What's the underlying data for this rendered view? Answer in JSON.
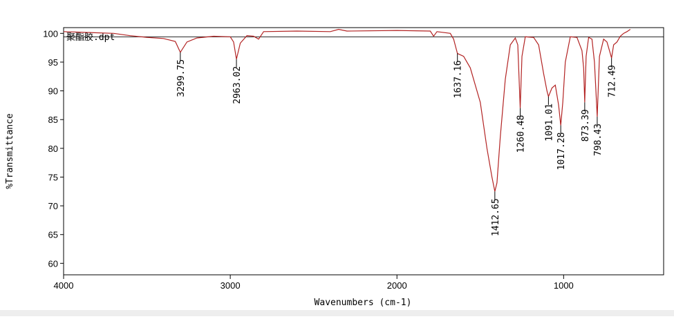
{
  "chart_data": {
    "type": "line",
    "legend": "聚酯胶.dpt",
    "xlabel": "Wavenumbers (cm-1)",
    "ylabel": "%Transmittance",
    "xlim": [
      4000,
      400
    ],
    "ylim": [
      58,
      101
    ],
    "xticks": [
      4000,
      3000,
      2000,
      1000
    ],
    "yticks": [
      60,
      65,
      70,
      75,
      80,
      85,
      90,
      95,
      100
    ],
    "reference_line": 99.4,
    "series": [
      {
        "color": "#b22222",
        "x": [
          4000,
          3900,
          3800,
          3700,
          3600,
          3500,
          3400,
          3330,
          3299.75,
          3260,
          3200,
          3100,
          3000,
          2980,
          2963.02,
          2940,
          2900,
          2860,
          2830,
          2800,
          2600,
          2400,
          2350,
          2300,
          2000,
          1800,
          1780,
          1760,
          1680,
          1660,
          1637.16,
          1600,
          1560,
          1500,
          1460,
          1430,
          1412.65,
          1400,
          1380,
          1350,
          1320,
          1290,
          1275,
          1260.48,
          1250,
          1230,
          1180,
          1150,
          1120,
          1100,
          1091.01,
          1070,
          1050,
          1030,
          1017.28,
          1005,
          990,
          960,
          920,
          890,
          880,
          873.39,
          865,
          850,
          830,
          815,
          798.43,
          785,
          760,
          740,
          720,
          712.49,
          700,
          680,
          660,
          640,
          620,
          600
        ],
        "values": [
          100.3,
          100.2,
          100.1,
          100,
          99.6,
          99.3,
          99.1,
          98.6,
          96.7,
          98.5,
          99.2,
          99.5,
          99.4,
          98.5,
          95.5,
          98.3,
          99.6,
          99.5,
          99,
          100.3,
          100.4,
          100.3,
          100.7,
          100.4,
          100.5,
          100.4,
          99.5,
          100.3,
          100,
          99,
          96.5,
          96,
          94,
          88,
          80,
          75,
          72.5,
          74,
          82,
          92,
          98,
          99.2,
          98,
          87,
          96,
          99.4,
          99.3,
          98,
          93,
          90,
          89,
          90.5,
          91,
          87.5,
          84,
          88,
          95,
          99.4,
          99.3,
          97,
          94,
          88,
          96,
          99.3,
          99,
          95,
          85.5,
          96,
          99,
          98.5,
          96.5,
          95.7,
          98,
          98.5,
          99.5,
          100,
          100.3,
          100.7
        ]
      }
    ],
    "peaks": {
      "x": [
        3299.75,
        2963.02,
        1637.16,
        1412.65,
        1260.48,
        1091.01,
        1017.28,
        873.39,
        798.43,
        712.49
      ],
      "y": [
        96.7,
        95.5,
        96.5,
        72.5,
        87,
        89,
        84,
        88,
        85.5,
        95.7
      ]
    }
  }
}
